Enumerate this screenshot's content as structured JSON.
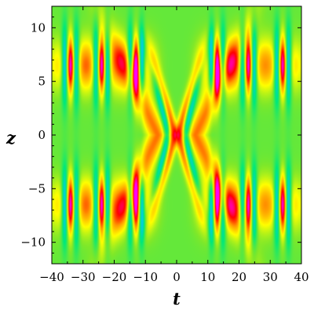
{
  "chart_data": {
    "type": "heatmap",
    "title": "",
    "xlabel": "t",
    "ylabel": "z",
    "xlim": [
      -40,
      40
    ],
    "ylim": [
      -12,
      12
    ],
    "x_ticks": [
      -40,
      -30,
      -20,
      -10,
      0,
      10,
      20,
      30,
      40
    ],
    "x_tick_labels": [
      "−40",
      "−30",
      "−20",
      "−10",
      "0",
      "10",
      "20",
      "30",
      "40"
    ],
    "y_ticks": [
      -10,
      -5,
      0,
      5,
      10
    ],
    "y_tick_labels": [
      "−10",
      "−5",
      "0",
      "5",
      "10"
    ],
    "grid": false,
    "legend": "none",
    "colormap": [
      "#0000ff",
      "#00c8ff",
      "#00e87a",
      "#7de82a",
      "#ffff00",
      "#ff9900",
      "#ff0000",
      "#ff00ff"
    ],
    "background_level_color": "#4ce83c",
    "features": {
      "periodic_peak_t": [
        -34,
        -24,
        -13,
        13,
        23,
        34
      ],
      "periodic_peak_z": [
        -6.5,
        6.5
      ],
      "central_collision_t": 0,
      "central_collision_z": 0,
      "central_waist_z_range": [
        -5.5,
        5.5
      ]
    }
  }
}
